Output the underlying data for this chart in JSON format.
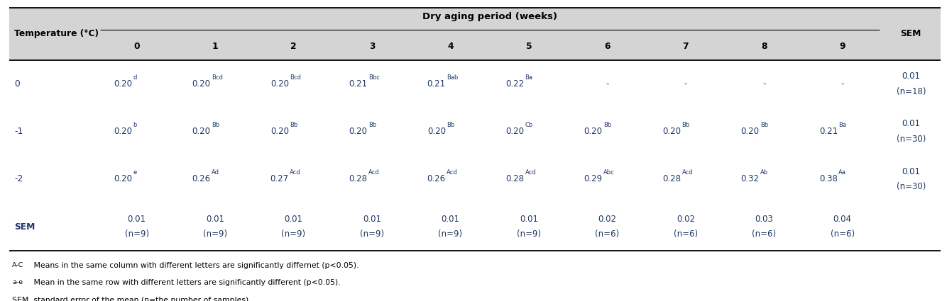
{
  "title": "Dry aging period (weeks)",
  "col_header_left": "Temperature (°C)",
  "col_header_sem": "SEM",
  "week_cols": [
    "0",
    "1",
    "2",
    "3",
    "4",
    "5",
    "6",
    "7",
    "8",
    "9"
  ],
  "row_labels": [
    "0",
    "-1",
    "-2",
    "SEM"
  ],
  "cells_main": [
    "0.20",
    "0.20",
    "0.20",
    "0.21",
    "0.21",
    "0.22",
    "-",
    "-",
    "-",
    "-"
  ],
  "cells_sup_row0": [
    "d",
    "Bcd",
    "Bcd",
    "Bbc",
    "Bab",
    "Ba",
    "",
    "",
    "",
    ""
  ],
  "cells_main_row1": [
    "0.20",
    "0.20",
    "0.20",
    "0.20",
    "0.20",
    "0.20",
    "0.20",
    "0.20",
    "0.20",
    "0.21"
  ],
  "cells_sup_row1": [
    "b",
    "Bb",
    "Bb",
    "Bb",
    "Bb",
    "Cb",
    "Bb",
    "Bb",
    "Bb",
    "Ba"
  ],
  "cells_main_row2": [
    "0.20",
    "0.26",
    "0.27",
    "0.28",
    "0.26",
    "0.28",
    "0.29",
    "0.28",
    "0.32",
    "0.38"
  ],
  "cells_sup_row2": [
    "e",
    "Ad",
    "Acd",
    "Acd",
    "Acd",
    "Acd",
    "Abc",
    "Acd",
    "Ab",
    "Aa"
  ],
  "sem_row0": [
    "0.01",
    "(n=18)"
  ],
  "sem_row1": [
    "0.01",
    "(n=30)"
  ],
  "sem_row2": [
    "0.01",
    "(n=30)"
  ],
  "sem_row_sem": [
    "",
    ""
  ],
  "sem_vals": [
    [
      "0.01",
      "(n=9)"
    ],
    [
      "0.01",
      "(n=9)"
    ],
    [
      "0.01",
      "(n=9)"
    ],
    [
      "0.01",
      "(n=9)"
    ],
    [
      "0.01",
      "(n=9)"
    ],
    [
      "0.01",
      "(n=9)"
    ],
    [
      "0.02",
      "(n=6)"
    ],
    [
      "0.02",
      "(n=6)"
    ],
    [
      "0.03",
      "(n=6)"
    ],
    [
      "0.04",
      "(n=6)"
    ]
  ],
  "footnote1_sup": "A-C",
  "footnote1_body": " Means in the same column with different letters are significantly differnet (p<0.05).",
  "footnote2_sup": "a-e",
  "footnote2_body": " Mean in the same row with different letters are significantly different (p<0.05).",
  "footnote3": "SEM, standard error of the mean (n=the number of samples).",
  "header_bg": "#d4d4d4",
  "white_bg": "#ffffff",
  "data_color": "#1f3864",
  "header_text_color": "#000000"
}
